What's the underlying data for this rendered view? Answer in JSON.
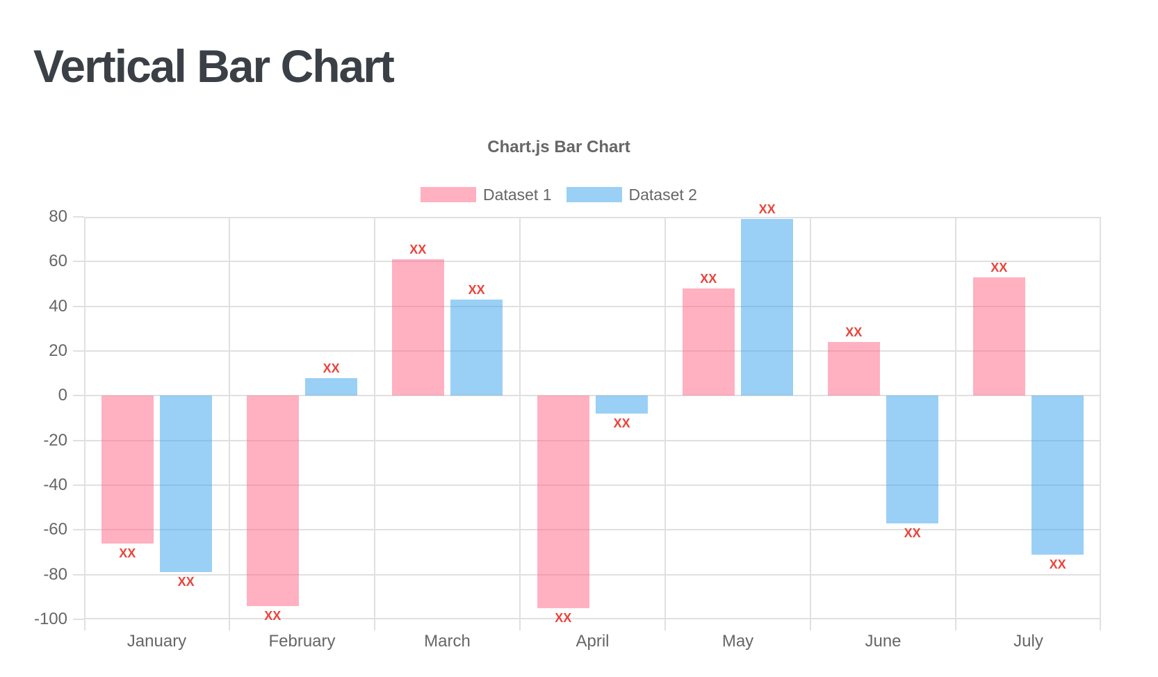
{
  "page": {
    "title": "Vertical Bar Chart",
    "title_color": "#3a4046",
    "background_color": "#ffffff"
  },
  "chart_data": {
    "type": "bar",
    "title": "Chart.js Bar Chart",
    "categories": [
      "January",
      "February",
      "March",
      "April",
      "May",
      "June",
      "July"
    ],
    "series": [
      {
        "name": "Dataset 1",
        "color": "rgba(255,99,132,0.5)",
        "values": [
          -66,
          -94,
          61,
          -95,
          48,
          24,
          53
        ]
      },
      {
        "name": "Dataset 2",
        "color": "rgba(54,162,235,0.5)",
        "values": [
          -79,
          8,
          43,
          -8,
          79,
          -57,
          -71
        ]
      }
    ],
    "bar_value_label": "XX",
    "bar_value_label_color": "#e9443a",
    "ylim": [
      -100,
      80
    ],
    "ytick_labels": [
      80,
      60,
      40,
      20,
      0,
      -20,
      -40,
      -60,
      -80,
      -100
    ],
    "grid": true,
    "legend_position": "top",
    "text_color": "#666666",
    "grid_color": "#e0e0e0"
  }
}
